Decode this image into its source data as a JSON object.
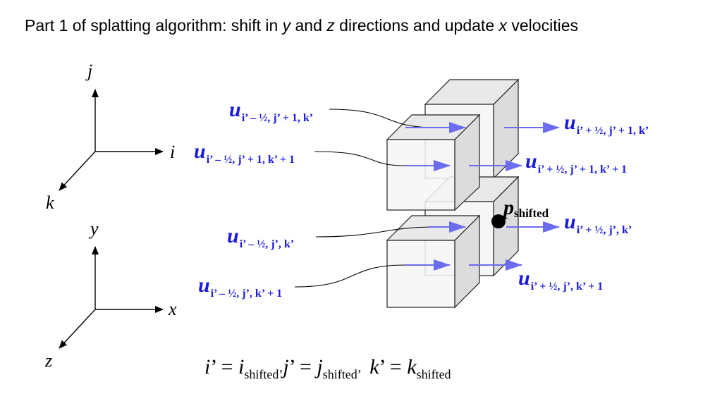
{
  "title": {
    "prefix": "Part 1 of splatting algorithm: shift in ",
    "var_y": "y",
    "middle1": " and ",
    "var_z": "z",
    "middle2": " directions and update ",
    "var_x": "x",
    "suffix": " velocities"
  },
  "grid_axes": {
    "up": "j",
    "right": "i",
    "diag": "k"
  },
  "world_axes": {
    "up": "y",
    "right": "x",
    "diag": "z"
  },
  "velocity_labels": {
    "symbol": "u",
    "in_top": "i’ – ½, j’ + 1, k’",
    "in_upper": "i’ – ½, j’ + 1, k’ + 1",
    "in_mid": "i’ – ½, j’, k’",
    "in_low": "i’ – ½, j’, k’ + 1",
    "out_top": "i’ + ½, j’ + 1, k’",
    "out_upper": "i’ + ½, j’ + 1, k’ + 1",
    "out_mid": "i’ + ½, j’, k’",
    "out_low": "i’ + ½, j’, k’ + 1"
  },
  "particle": {
    "symbol": "p",
    "subscript": "shifted"
  },
  "equation": {
    "i_var": "i",
    "j_var": "j",
    "k_var": "k",
    "prime_eq": "’ = ",
    "comma": ", ",
    "sub": "shifted",
    "sub_comma": "shifted’"
  },
  "colors": {
    "velocity_text": "#1a1adb",
    "velocity_arrow": "#6c6cf0"
  }
}
